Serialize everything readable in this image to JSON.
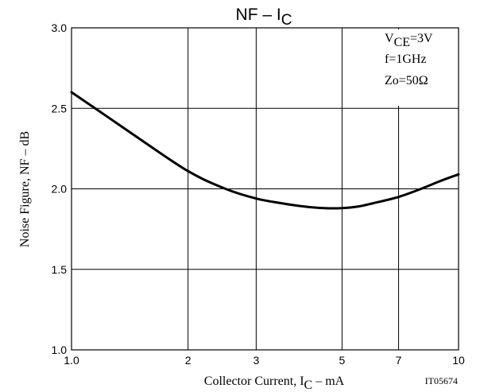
{
  "chart_data": {
    "type": "line",
    "title": {
      "main": "NF",
      "sep": " – ",
      "var": "I",
      "sub": "C"
    },
    "x_axis": {
      "label_main": "Collector Current, I",
      "label_sub": "C",
      "label_unit": " – mA",
      "scale": "log",
      "range": [
        1,
        10
      ],
      "ticks": [
        {
          "value": 1,
          "label": "1.0"
        },
        {
          "value": 2,
          "label": "2"
        },
        {
          "value": 3,
          "label": "3"
        },
        {
          "value": 5,
          "label": "5"
        },
        {
          "value": 7,
          "label": "7"
        },
        {
          "value": 10,
          "label": "10"
        }
      ]
    },
    "y_axis": {
      "label": "Noise Figure, NF  –  dB",
      "scale": "linear",
      "range": [
        1.0,
        3.0
      ],
      "ticks": [
        {
          "value": 1.0,
          "label": "1.0"
        },
        {
          "value": 1.5,
          "label": "1.5"
        },
        {
          "value": 2.0,
          "label": "2.0"
        },
        {
          "value": 2.5,
          "label": "2.5"
        },
        {
          "value": 3.0,
          "label": "3.0"
        }
      ]
    },
    "grid": true,
    "conditions": {
      "vce_main": "V",
      "vce_sub": "CE",
      "vce_value": "=3V",
      "freq": "f=1GHz",
      "zo": "Zo=50Ω"
    },
    "conditions_position": "top-right",
    "figure_id": "IT05674",
    "series": [
      {
        "x": [
          1.0,
          1.2,
          1.5,
          2.0,
          2.5,
          3.0,
          3.5,
          4.0,
          4.5,
          5.0,
          5.5,
          6.0,
          7.0,
          8.0,
          9.0,
          10.0
        ],
        "y": [
          2.6,
          2.47,
          2.31,
          2.11,
          2.0,
          1.94,
          1.91,
          1.89,
          1.88,
          1.88,
          1.89,
          1.91,
          1.95,
          2.0,
          2.05,
          2.09
        ]
      }
    ]
  }
}
